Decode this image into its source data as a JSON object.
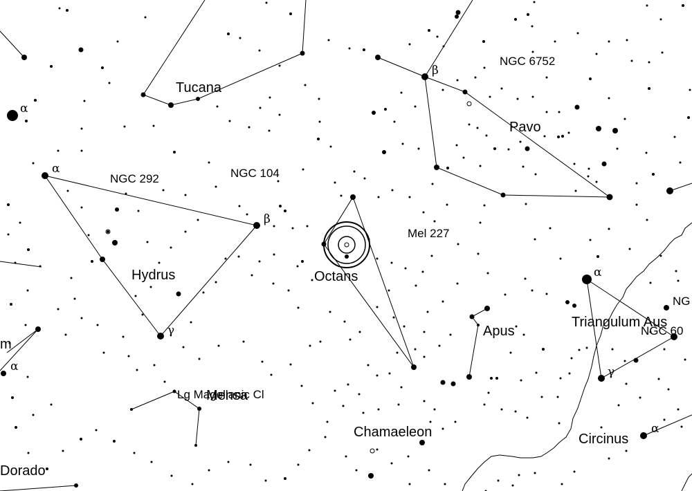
{
  "map": {
    "background": "#ffffff",
    "ink": "#000000",
    "pole_marker": "south-celestial-pole-reticle"
  },
  "constellation_labels": [
    {
      "id": "tucana",
      "text": "Tucana"
    },
    {
      "id": "pavo",
      "text": "Pavo"
    },
    {
      "id": "hydrus",
      "text": "Hydrus"
    },
    {
      "id": "octans",
      "text": "Octans"
    },
    {
      "id": "apus",
      "text": "Apus"
    },
    {
      "id": "triangulum-australe",
      "text": "Triangulum Aus"
    },
    {
      "id": "mensa",
      "text": "Mensa"
    },
    {
      "id": "chamaeleon",
      "text": "Chamaeleon"
    },
    {
      "id": "circinus",
      "text": "Circinus"
    },
    {
      "id": "dorado",
      "text": "Dorado"
    },
    {
      "id": "edge-m",
      "text": "m"
    }
  ],
  "object_labels": [
    {
      "id": "ngc-6752",
      "text": "NGC 6752"
    },
    {
      "id": "ngc-292",
      "text": "NGC 292"
    },
    {
      "id": "ngc-104",
      "text": "NGC 104"
    },
    {
      "id": "mel-227",
      "text": "Mel 227"
    },
    {
      "id": "lmc",
      "text": "Lg Magellanic Cl"
    },
    {
      "id": "ngc-edge-1",
      "text": "NG"
    },
    {
      "id": "ngc-edge-2",
      "text": "NGC 60"
    }
  ],
  "greek_labels": [
    {
      "id": "pavo-beta",
      "text": "β"
    },
    {
      "id": "alpha-left",
      "text": "α"
    },
    {
      "id": "hydrus-alpha",
      "text": "α"
    },
    {
      "id": "hydrus-beta",
      "text": "β"
    },
    {
      "id": "hydrus-gamma",
      "text": "γ"
    },
    {
      "id": "alpha-lower-left",
      "text": "α"
    },
    {
      "id": "tra-alpha",
      "text": "α"
    },
    {
      "id": "tra-gamma",
      "text": "γ"
    },
    {
      "id": "cir-alpha",
      "text": "α"
    }
  ]
}
